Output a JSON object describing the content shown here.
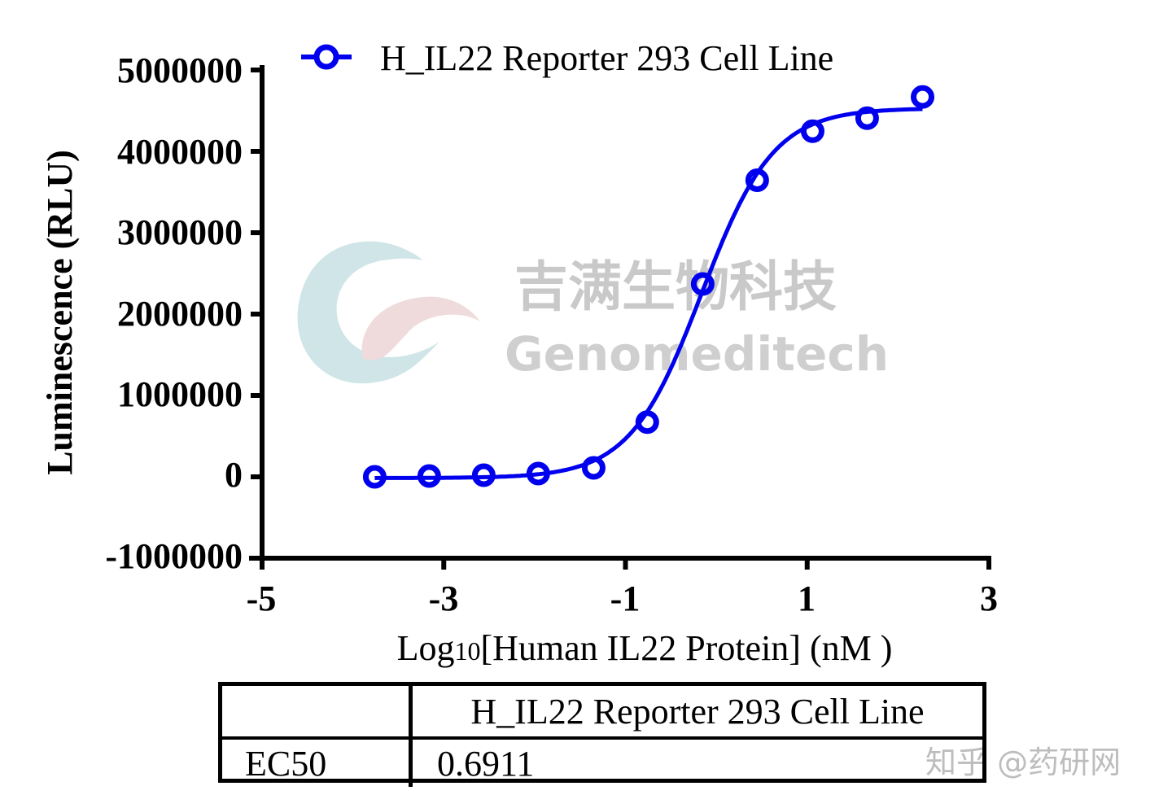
{
  "chart_data": {
    "type": "scatter",
    "title": "",
    "xlabel": "Log10[Human IL22 Protein] (nM )",
    "xlabel_parts": {
      "prefix": "Log",
      "subscript": "10",
      "suffix": "[Human IL22 Protein] (nM )"
    },
    "ylabel": "Luminescence (RLU)",
    "xlim": [
      -5,
      3
    ],
    "ylim": [
      -1000000,
      5000000
    ],
    "x_ticks": [
      -5,
      -3,
      -1,
      1,
      3
    ],
    "x_tick_labels": [
      "-5",
      "-3",
      "-1",
      "1",
      "3"
    ],
    "y_ticks": [
      -1000000,
      0,
      1000000,
      2000000,
      3000000,
      4000000,
      5000000
    ],
    "y_tick_labels": [
      "-1000000",
      "0",
      "1000000",
      "2000000",
      "3000000",
      "4000000",
      "5000000"
    ],
    "grid": false,
    "legend_position": "top",
    "series": [
      {
        "name": "H_IL22 Reporter 293 Cell Line",
        "color": "#0000ee",
        "marker": "open-circle",
        "fit": "4PL sigmoidal curve",
        "x": [
          -3.76,
          -3.16,
          -2.56,
          -1.96,
          -1.35,
          -0.76,
          -0.15,
          0.45,
          1.06,
          1.66,
          2.27
        ],
        "values": [
          0,
          10000,
          20000,
          40000,
          110000,
          673000,
          2370000,
          3645000,
          4247000,
          4408000,
          4669000
        ]
      }
    ],
    "fit_curve": {
      "bottom": -15000,
      "top": 4530000,
      "log_ec50": -0.16,
      "hill_slope": 1.1
    },
    "table": {
      "header": [
        "",
        "H_IL22 Reporter 293 Cell Line"
      ],
      "rows": [
        [
          "EC50",
          "0.6911"
        ]
      ]
    }
  },
  "legend": {
    "label": "H_IL22 Reporter 293 Cell Line"
  },
  "table": {
    "header_blank": "",
    "header_series": "H_IL22 Reporter 293 Cell Line",
    "row_label": "EC50",
    "row_value": "0.6911"
  },
  "watermarks": {
    "company_cn": "吉满生物科技",
    "company_en": "Genomeditech",
    "platform": "知乎 @药研网"
  }
}
